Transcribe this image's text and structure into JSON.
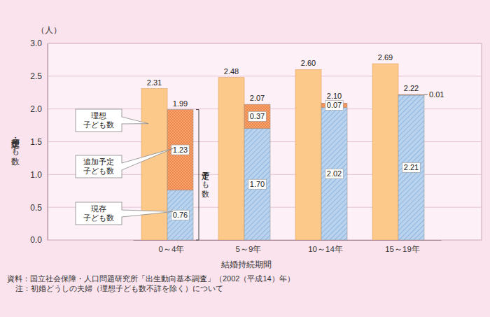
{
  "chart_data": {
    "type": "bar",
    "y_unit": "（人）",
    "ylabel": "理想・予定子ども数",
    "xlabel": "結婚持続期間",
    "categories": [
      "0～4年",
      "5～9年",
      "10～14年",
      "15～19年"
    ],
    "series": [
      {
        "name": "理想\n子ども数",
        "color": "#fdc98a",
        "values": [
          2.31,
          2.48,
          2.6,
          2.69
        ],
        "value_labels": [
          "2.31",
          "2.48",
          "2.60",
          "2.69"
        ]
      },
      {
        "name": "予定子ども数",
        "stacked": true,
        "values": [
          1.99,
          2.07,
          2.1,
          2.22
        ],
        "value_labels": [
          "1.99",
          "2.07",
          "2.10",
          "2.22"
        ],
        "series": [
          {
            "name": "現存\n子ども数",
            "color": "#b9d3ee",
            "values": [
              0.76,
              1.7,
              2.02,
              2.21
            ],
            "value_labels": [
              "0.76",
              "1.70",
              "2.02",
              "2.21"
            ]
          },
          {
            "name": "追加予定\n子ども数",
            "color": "#f9a46a",
            "values": [
              1.23,
              0.37,
              0.07,
              0.01
            ],
            "value_labels": [
              "1.23",
              "0.37",
              "0.07",
              "0.01"
            ]
          }
        ]
      }
    ],
    "ylim": [
      0,
      3
    ],
    "yticks": [
      {
        "value": 0,
        "label": "0.0"
      },
      0.5,
      {
        "value": 1,
        "label": "1.0"
      },
      1.5,
      {
        "value": 2,
        "label": "2.0"
      },
      2.5,
      {
        "value": 3,
        "label": "3.0"
      }
    ],
    "grid": true,
    "data_labels": true,
    "notes": [
      "資料：国立社会保障・人口問題研究所「出生動向基本調査」（2002（平成14）年）",
      "注：初婚どうしの夫婦（理想子ども数不詳を除く）について"
    ]
  }
}
